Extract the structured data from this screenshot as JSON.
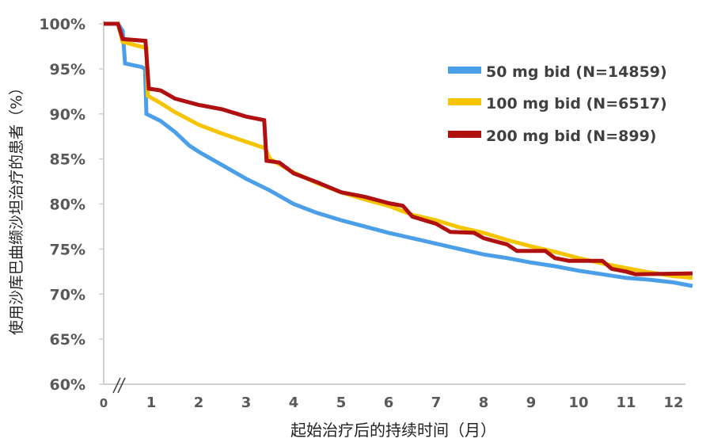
{
  "chart_data": {
    "type": "line",
    "title": "",
    "xlabel": "起始治疗后的持续时间（月）",
    "ylabel": "使用沙库巴曲缬沙坦治疗的患者（%）",
    "xlim": [
      0,
      12.5
    ],
    "ylim": [
      60,
      100
    ],
    "x_ticks": [
      "0",
      "1",
      "2",
      "3",
      "4",
      "5",
      "6",
      "7",
      "8",
      "9",
      "10",
      "11",
      "12"
    ],
    "y_ticks": [
      "60%",
      "65%",
      "70%",
      "75%",
      "80%",
      "85%",
      "90%",
      "95%",
      "100%"
    ],
    "grid": false,
    "legend_position": "top-right",
    "axis_break": "x",
    "series": [
      {
        "name": "50 mg bid (N=14859)",
        "color": "#4A9FE8",
        "points": [
          [
            0,
            100
          ],
          [
            0.3,
            100
          ],
          [
            0.35,
            99.6
          ],
          [
            0.4,
            99.2
          ],
          [
            0.45,
            95.6
          ],
          [
            0.8,
            95.2
          ],
          [
            0.87,
            95.0
          ],
          [
            0.9,
            90.0
          ],
          [
            1.2,
            89.2
          ],
          [
            1.5,
            88.0
          ],
          [
            1.8,
            86.5
          ],
          [
            2.0,
            85.8
          ],
          [
            2.5,
            84.3
          ],
          [
            3.0,
            82.8
          ],
          [
            3.5,
            81.5
          ],
          [
            4.0,
            80.0
          ],
          [
            4.5,
            79.0
          ],
          [
            5.0,
            78.2
          ],
          [
            5.5,
            77.5
          ],
          [
            6.0,
            76.8
          ],
          [
            6.5,
            76.2
          ],
          [
            7.0,
            75.6
          ],
          [
            7.5,
            75.0
          ],
          [
            8.0,
            74.4
          ],
          [
            8.5,
            74.0
          ],
          [
            9.0,
            73.5
          ],
          [
            9.5,
            73.1
          ],
          [
            10.0,
            72.6
          ],
          [
            10.5,
            72.2
          ],
          [
            11.0,
            71.8
          ],
          [
            11.5,
            71.6
          ],
          [
            12.0,
            71.3
          ],
          [
            12.4,
            70.9
          ]
        ]
      },
      {
        "name": "100 mg bid (N=6517)",
        "color": "#F6C400",
        "points": [
          [
            0,
            100
          ],
          [
            0.3,
            100
          ],
          [
            0.4,
            98.0
          ],
          [
            0.9,
            97.3
          ],
          [
            0.93,
            92.0
          ],
          [
            1.2,
            91.2
          ],
          [
            1.5,
            90.2
          ],
          [
            2.0,
            88.8
          ],
          [
            2.5,
            87.8
          ],
          [
            3.0,
            86.9
          ],
          [
            3.4,
            86.2
          ],
          [
            3.5,
            85.0
          ],
          [
            4.0,
            83.5
          ],
          [
            4.5,
            82.3
          ],
          [
            5.0,
            81.3
          ],
          [
            5.5,
            80.5
          ],
          [
            6.0,
            79.8
          ],
          [
            6.5,
            78.8
          ],
          [
            7.0,
            78.2
          ],
          [
            7.5,
            77.4
          ],
          [
            8.0,
            76.8
          ],
          [
            8.5,
            76.0
          ],
          [
            9.0,
            75.3
          ],
          [
            9.5,
            74.7
          ],
          [
            10.0,
            74.0
          ],
          [
            10.5,
            73.4
          ],
          [
            11.0,
            72.9
          ],
          [
            11.5,
            72.4
          ],
          [
            12.0,
            72.0
          ],
          [
            12.4,
            71.8
          ]
        ]
      },
      {
        "name": "200 mg bid (N=899)",
        "color": "#B01010",
        "points": [
          [
            0,
            100
          ],
          [
            0.3,
            100
          ],
          [
            0.4,
            98.3
          ],
          [
            0.88,
            98.1
          ],
          [
            0.95,
            92.8
          ],
          [
            1.2,
            92.6
          ],
          [
            1.5,
            91.7
          ],
          [
            2.0,
            91.0
          ],
          [
            2.5,
            90.5
          ],
          [
            3.0,
            89.7
          ],
          [
            3.38,
            89.3
          ],
          [
            3.43,
            84.8
          ],
          [
            3.7,
            84.6
          ],
          [
            4.0,
            83.4
          ],
          [
            4.5,
            82.4
          ],
          [
            5.0,
            81.3
          ],
          [
            5.5,
            80.8
          ],
          [
            6.0,
            80.1
          ],
          [
            6.3,
            79.8
          ],
          [
            6.5,
            78.6
          ],
          [
            7.0,
            77.8
          ],
          [
            7.3,
            76.9
          ],
          [
            7.8,
            76.8
          ],
          [
            8.0,
            76.2
          ],
          [
            8.5,
            75.5
          ],
          [
            8.7,
            74.8
          ],
          [
            9.3,
            74.8
          ],
          [
            9.5,
            74.0
          ],
          [
            9.8,
            73.7
          ],
          [
            10.5,
            73.7
          ],
          [
            10.7,
            72.8
          ],
          [
            11.0,
            72.5
          ],
          [
            11.2,
            72.2
          ],
          [
            12.4,
            72.3
          ]
        ]
      }
    ]
  }
}
